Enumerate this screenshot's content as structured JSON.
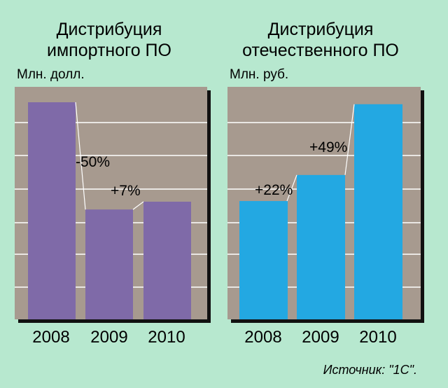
{
  "chart_data": [
    {
      "type": "bar",
      "title": "Дистрибуция импортного ПО",
      "title_lines": [
        "Дистрибуция",
        "импортного ПО"
      ],
      "ylabel": "Млн. долл.",
      "categories": [
        "2008",
        "2009",
        "2010"
      ],
      "values": [
        100,
        50.6,
        54.2
      ],
      "change_labels": [
        "-50%",
        "+7%"
      ],
      "ylim": [
        0,
        100
      ],
      "grid": true,
      "bar_color": "#7f6aa8",
      "plot_background": "#a79a8f"
    },
    {
      "type": "bar",
      "title": "Дистрибуция отечественного ПО",
      "title_lines": [
        "Дистрибуция",
        "отечественного ПО"
      ],
      "ylabel": "Млн. руб.",
      "categories": [
        "2008",
        "2009",
        "2010"
      ],
      "values": [
        54.5,
        66.5,
        99.1
      ],
      "change_labels": [
        "+22%",
        "+49%"
      ],
      "ylim": [
        0,
        100
      ],
      "grid": true,
      "bar_color": "#23a8e2",
      "plot_background": "#a79a8f"
    }
  ],
  "source_label": "Источник: \"1С\".",
  "colors": {
    "background": "#b7e8cf",
    "grid": "#ffffff",
    "shadow": "#111111"
  }
}
